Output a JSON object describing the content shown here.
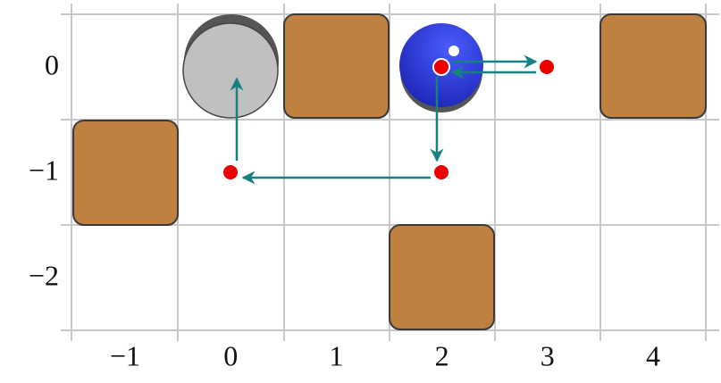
{
  "x_axis": {
    "labels": [
      "−1",
      "0",
      "1",
      "2",
      "3",
      "4"
    ]
  },
  "y_axis": {
    "labels": [
      "0",
      "−1",
      "−2"
    ]
  }
}
